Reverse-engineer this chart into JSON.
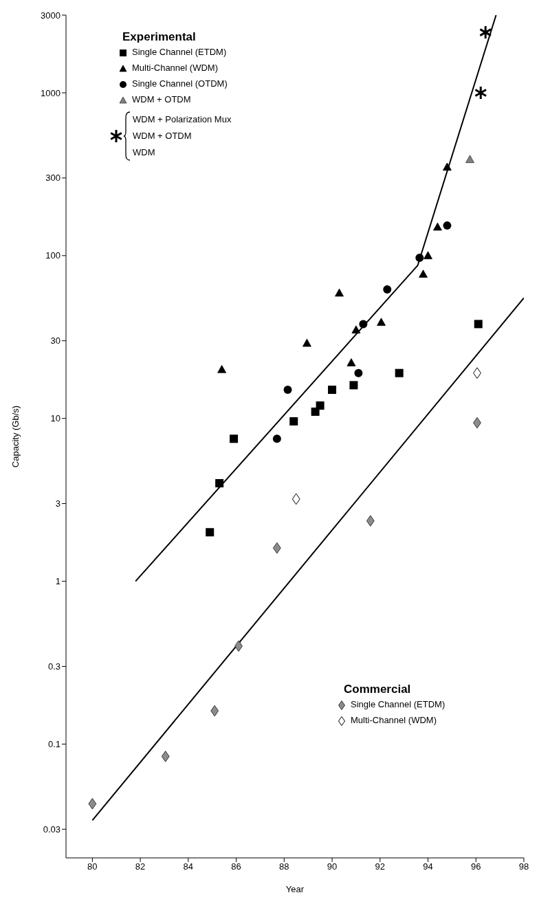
{
  "chart_data": {
    "type": "scatter",
    "xlabel": "Year",
    "ylabel": "Capacity (Gb/s)",
    "legend_title": "Experimental",
    "legend": "top left",
    "log": "y",
    "xlim": [
      78.9,
      98
    ],
    "xticks": [
      80,
      82,
      84,
      86,
      88,
      90,
      92,
      94,
      96,
      98
    ],
    "ylim": [
      0.02,
      3000
    ],
    "yticks": [
      0.03,
      0.1,
      0.3,
      1,
      3,
      10,
      30,
      100,
      300,
      1000,
      3000
    ],
    "annotations": [
      "WDM + Polarization Mux",
      "WDM + OTDM",
      "WDM",
      "Commercial"
    ],
    "series": [
      {
        "name": "Single Channel (ETDM)",
        "color": "#000000",
        "marker": "square",
        "x": [
          84.9,
          85.3,
          85.9,
          88.4,
          89.3,
          89.5,
          90.0,
          90.9,
          92.8,
          96.1
        ],
        "values": [
          2,
          4,
          7.5,
          9.6,
          11,
          12,
          15,
          16,
          19,
          38
        ]
      },
      {
        "name": "Multi-Channel (WDM)",
        "color": "#000000",
        "marker": "triangle",
        "x": [
          85.4,
          88.95,
          90.3,
          90.8,
          91.0,
          92.05,
          93.8,
          94.0,
          94.4,
          94.8
        ],
        "values": [
          20,
          29,
          59,
          22,
          35,
          39,
          77,
          100,
          150,
          350
        ]
      },
      {
        "name": "Single Channel (OTDM)",
        "color": "#000000",
        "marker": "circle",
        "x": [
          87.7,
          88.15,
          91.1,
          91.3,
          92.3,
          93.65,
          94.8
        ],
        "values": [
          7.5,
          15,
          19,
          38,
          62,
          97,
          153
        ]
      },
      {
        "name": "WDM + OTDM",
        "color": "#808080",
        "marker": "triangle",
        "x": [
          95.75
        ],
        "values": [
          390
        ]
      },
      {
        "color": "#000000",
        "marker": "cross",
        "x": [
          96.2,
          96.4
        ],
        "values": [
          1000,
          2350
        ]
      },
      {
        "name": "Single Channel (ETDM)",
        "color": "#8c8c8c",
        "marker": "diamond",
        "x": [
          80.0,
          83.05,
          85.1,
          86.1,
          87.7,
          91.6,
          96.05
        ],
        "values": [
          0.043,
          0.084,
          0.16,
          0.4,
          1.6,
          2.35,
          9.4
        ]
      },
      {
        "name": "Multi-Channel (WDM)",
        "color": "#ffffff",
        "marker": "diamond",
        "x": [
          88.5,
          96.05
        ],
        "values": [
          3.2,
          19
        ]
      },
      {
        "type": "line",
        "color": "#000000",
        "marker": "none",
        "x": [
          81.8,
          93.57,
          96.84
        ],
        "values": [
          1.0,
          87,
          3000
        ]
      },
      {
        "type": "line",
        "color": "#000000",
        "marker": "none",
        "x": [
          80.0,
          98
        ],
        "values": [
          0.034,
          55
        ]
      }
    ]
  }
}
